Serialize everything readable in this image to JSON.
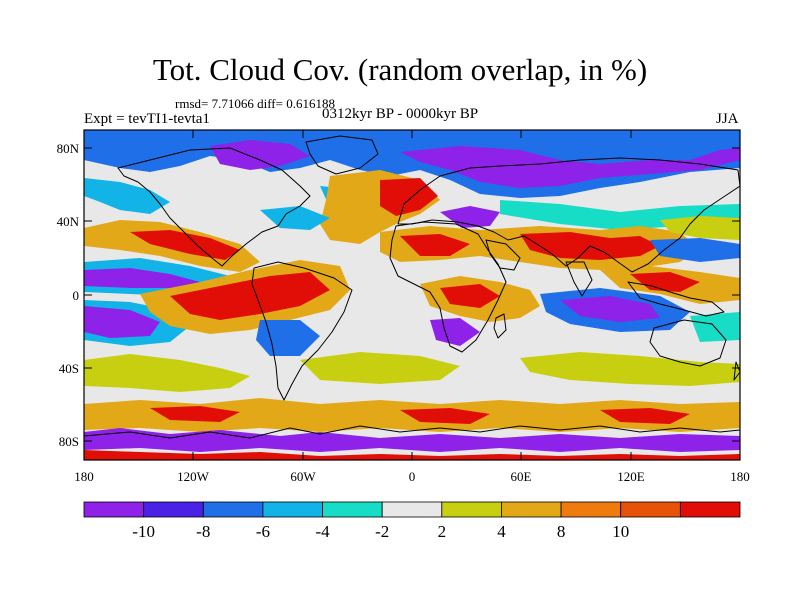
{
  "title": "Tot. Cloud Cov. (random overlap, in %)",
  "subtitle_stats": "rmsd= 7.71066 diff= 0.616188",
  "experiment": "Expt = tevTI1-tevta1",
  "period": "0312kyr BP - 0000kyr BP",
  "season": "JJA",
  "axes": {
    "lon_ticks": [
      "180",
      "120W",
      "60W",
      "0",
      "60E",
      "120E",
      "180"
    ],
    "lat_ticks": [
      "80N",
      "40N",
      "0",
      "40S",
      "80S"
    ]
  },
  "colorbar": {
    "labels": [
      "-10",
      "-8",
      "-6",
      "-4",
      "-2",
      "2",
      "4",
      "8",
      "10"
    ],
    "colors": [
      "#8f22e8",
      "#4a22e6",
      "#1e6fe8",
      "#12b3e6",
      "#17dcc6",
      "#e8e8e8",
      "#c7cf10",
      "#e3a818",
      "#ef7a0e",
      "#e65208",
      "#e10e08"
    ]
  },
  "palette": {
    "strong_negative": "#8f22e8",
    "negative": "#4a22e6",
    "moderate_negative": "#1e6fe8",
    "weak_negative": "#12b3e6",
    "slight_negative": "#17dcc6",
    "neutral": "#e8e8e8",
    "slight_positive": "#c7cf10",
    "positive": "#e3a818",
    "moderate_positive": "#ef7a0e",
    "strong_positive": "#e65208",
    "max_positive": "#e10e08"
  }
}
